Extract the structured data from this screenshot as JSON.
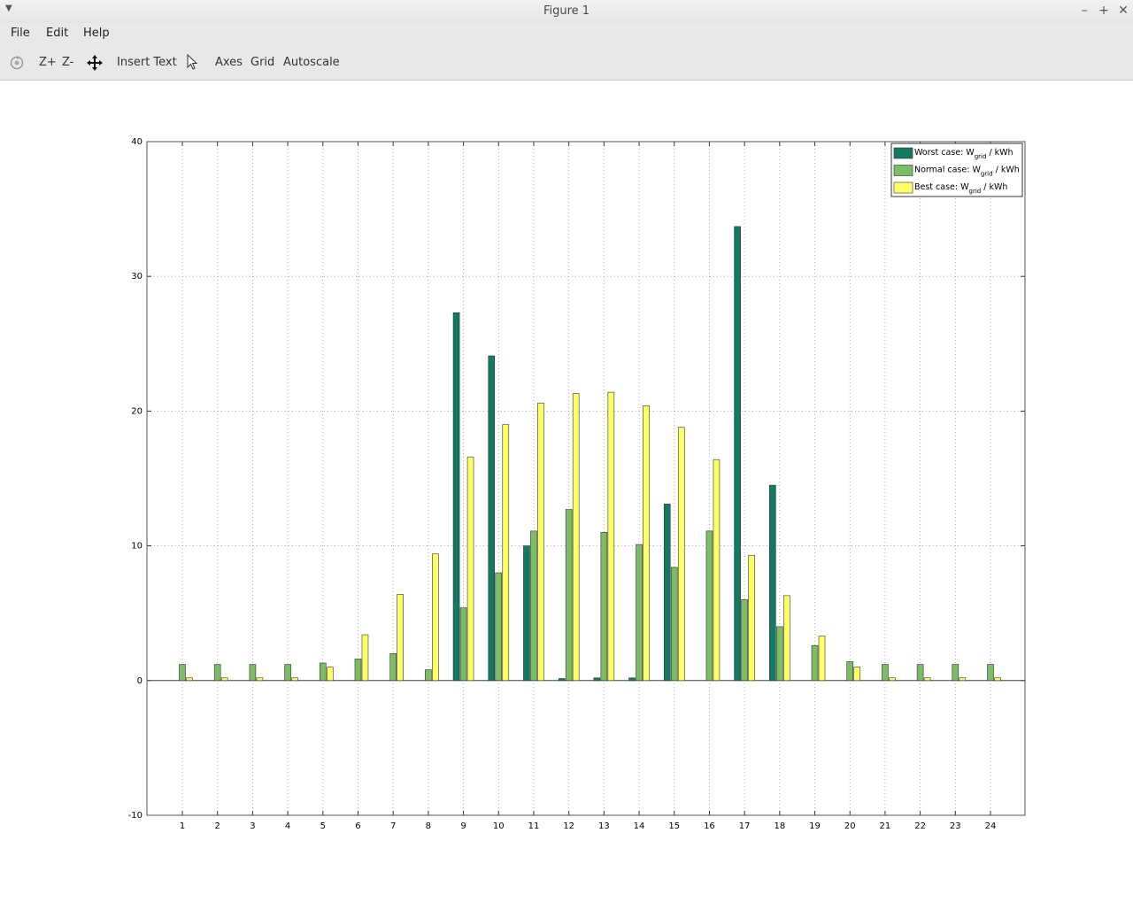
{
  "window": {
    "title": "Figure 1"
  },
  "menubar": {
    "file": "File",
    "edit": "Edit",
    "help": "Help"
  },
  "toolbar": {
    "zoom_in": "Z+",
    "zoom_out": "Z-",
    "insert_text": "Insert Text",
    "axes": "Axes",
    "grid": "Grid",
    "autoscale": "Autoscale"
  },
  "colors": {
    "worst": "#127a63",
    "normal": "#7cbc66",
    "best": "#ffff66"
  },
  "chart_data": {
    "type": "bar",
    "title": "",
    "xlabel": "",
    "ylabel": "",
    "ylim": [
      -10,
      40
    ],
    "yticks": [
      -10,
      0,
      10,
      20,
      30,
      40
    ],
    "grid": true,
    "legend_position": "top-right",
    "categories": [
      "1",
      "2",
      "3",
      "4",
      "5",
      "6",
      "7",
      "8",
      "9",
      "10",
      "11",
      "12",
      "13",
      "14",
      "15",
      "16",
      "17",
      "18",
      "19",
      "20",
      "21",
      "22",
      "23",
      "24"
    ],
    "series": [
      {
        "name_prefix": "Worst case: W",
        "name_sub": "grid",
        "name_suffix": "/ kWh",
        "color": "#127a63",
        "values": [
          0,
          0,
          0,
          0,
          0,
          0,
          0,
          0,
          27.3,
          24.1,
          10.0,
          0.15,
          0.2,
          0.2,
          13.1,
          0,
          33.7,
          14.5,
          0,
          0,
          0,
          0,
          0,
          0
        ]
      },
      {
        "name_prefix": "Normal case: W",
        "name_sub": "grid",
        "name_suffix": "/ kWh",
        "color": "#7cbc66",
        "values": [
          1.2,
          1.2,
          1.2,
          1.2,
          1.3,
          1.6,
          2.0,
          0.8,
          5.4,
          8.0,
          11.1,
          12.7,
          11.0,
          10.1,
          8.4,
          11.1,
          6.0,
          4.0,
          2.6,
          1.4,
          1.2,
          1.2,
          1.2,
          1.2
        ]
      },
      {
        "name_prefix": "Best case: W",
        "name_sub": "grid",
        "name_suffix": "/ kWh",
        "color": "#ffff66",
        "values": [
          0.2,
          0.2,
          0.2,
          0.2,
          1.0,
          3.4,
          6.4,
          9.4,
          16.6,
          19.0,
          20.6,
          21.3,
          21.4,
          20.4,
          18.8,
          16.4,
          9.3,
          6.3,
          3.3,
          1.0,
          0.2,
          0.2,
          0.2,
          0.2
        ]
      }
    ]
  }
}
